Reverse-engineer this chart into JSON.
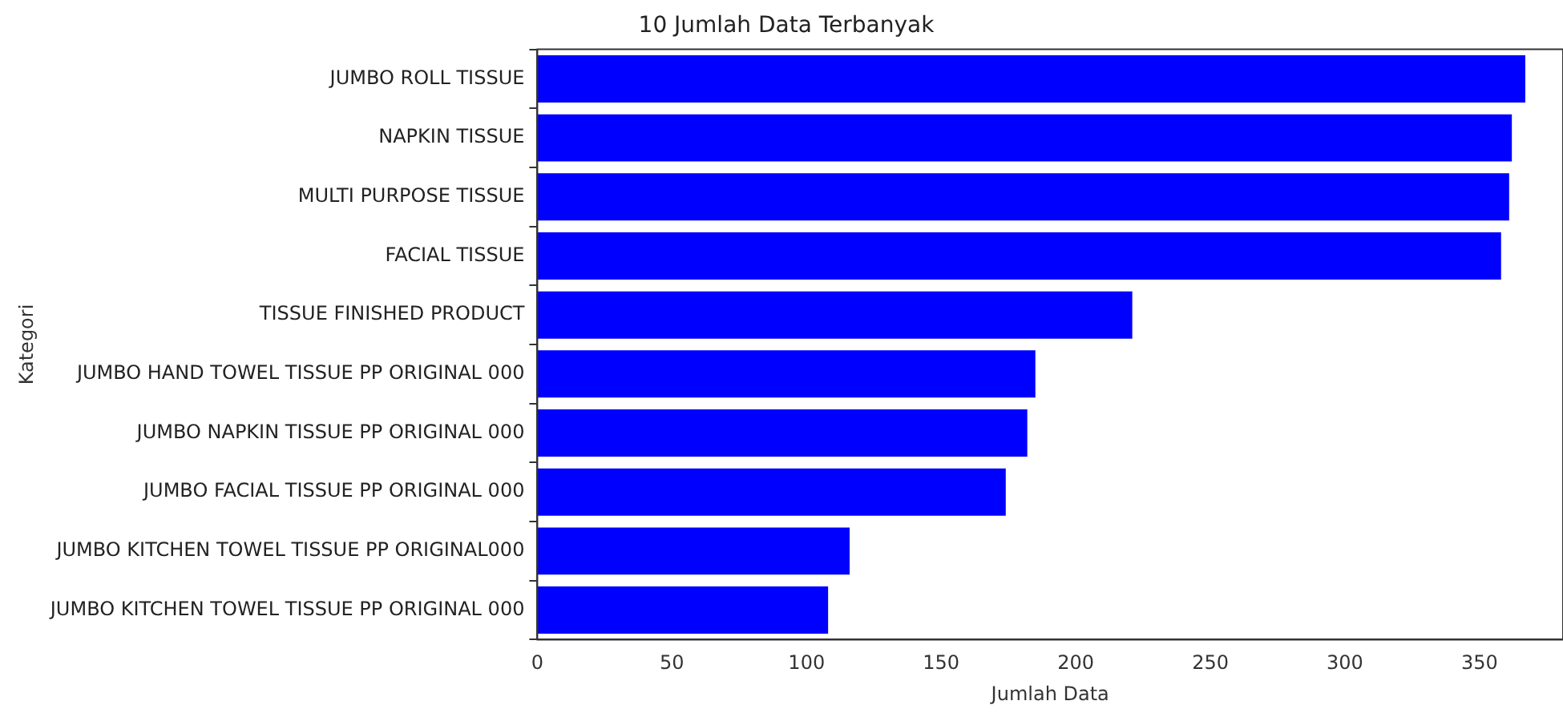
{
  "chart_data": {
    "type": "bar",
    "orientation": "horizontal",
    "title": "10 Jumlah Data Terbanyak",
    "xlabel": "Jumlah Data",
    "ylabel": "Kategori",
    "categories": [
      "JUMBO ROLL TISSUE",
      "NAPKIN TISSUE",
      "MULTI PURPOSE TISSUE",
      "FACIAL TISSUE",
      "TISSUE FINISHED PRODUCT",
      "JUMBO HAND TOWEL TISSUE PP ORIGINAL 000",
      "JUMBO NAPKIN TISSUE PP ORIGINAL 000",
      "JUMBO FACIAL TISSUE PP ORIGINAL 000",
      "JUMBO KITCHEN TOWEL TISSUE PP ORIGINAL000",
      "JUMBO KITCHEN TOWEL TISSUE PP ORIGINAL 000"
    ],
    "values": [
      367,
      362,
      361,
      358,
      221,
      185,
      182,
      174,
      116,
      108
    ],
    "color": "#0000ff",
    "xlim": [
      0,
      381
    ],
    "xticks": [
      0,
      50,
      100,
      150,
      200,
      250,
      300,
      350
    ],
    "grid": false,
    "legend": false
  }
}
